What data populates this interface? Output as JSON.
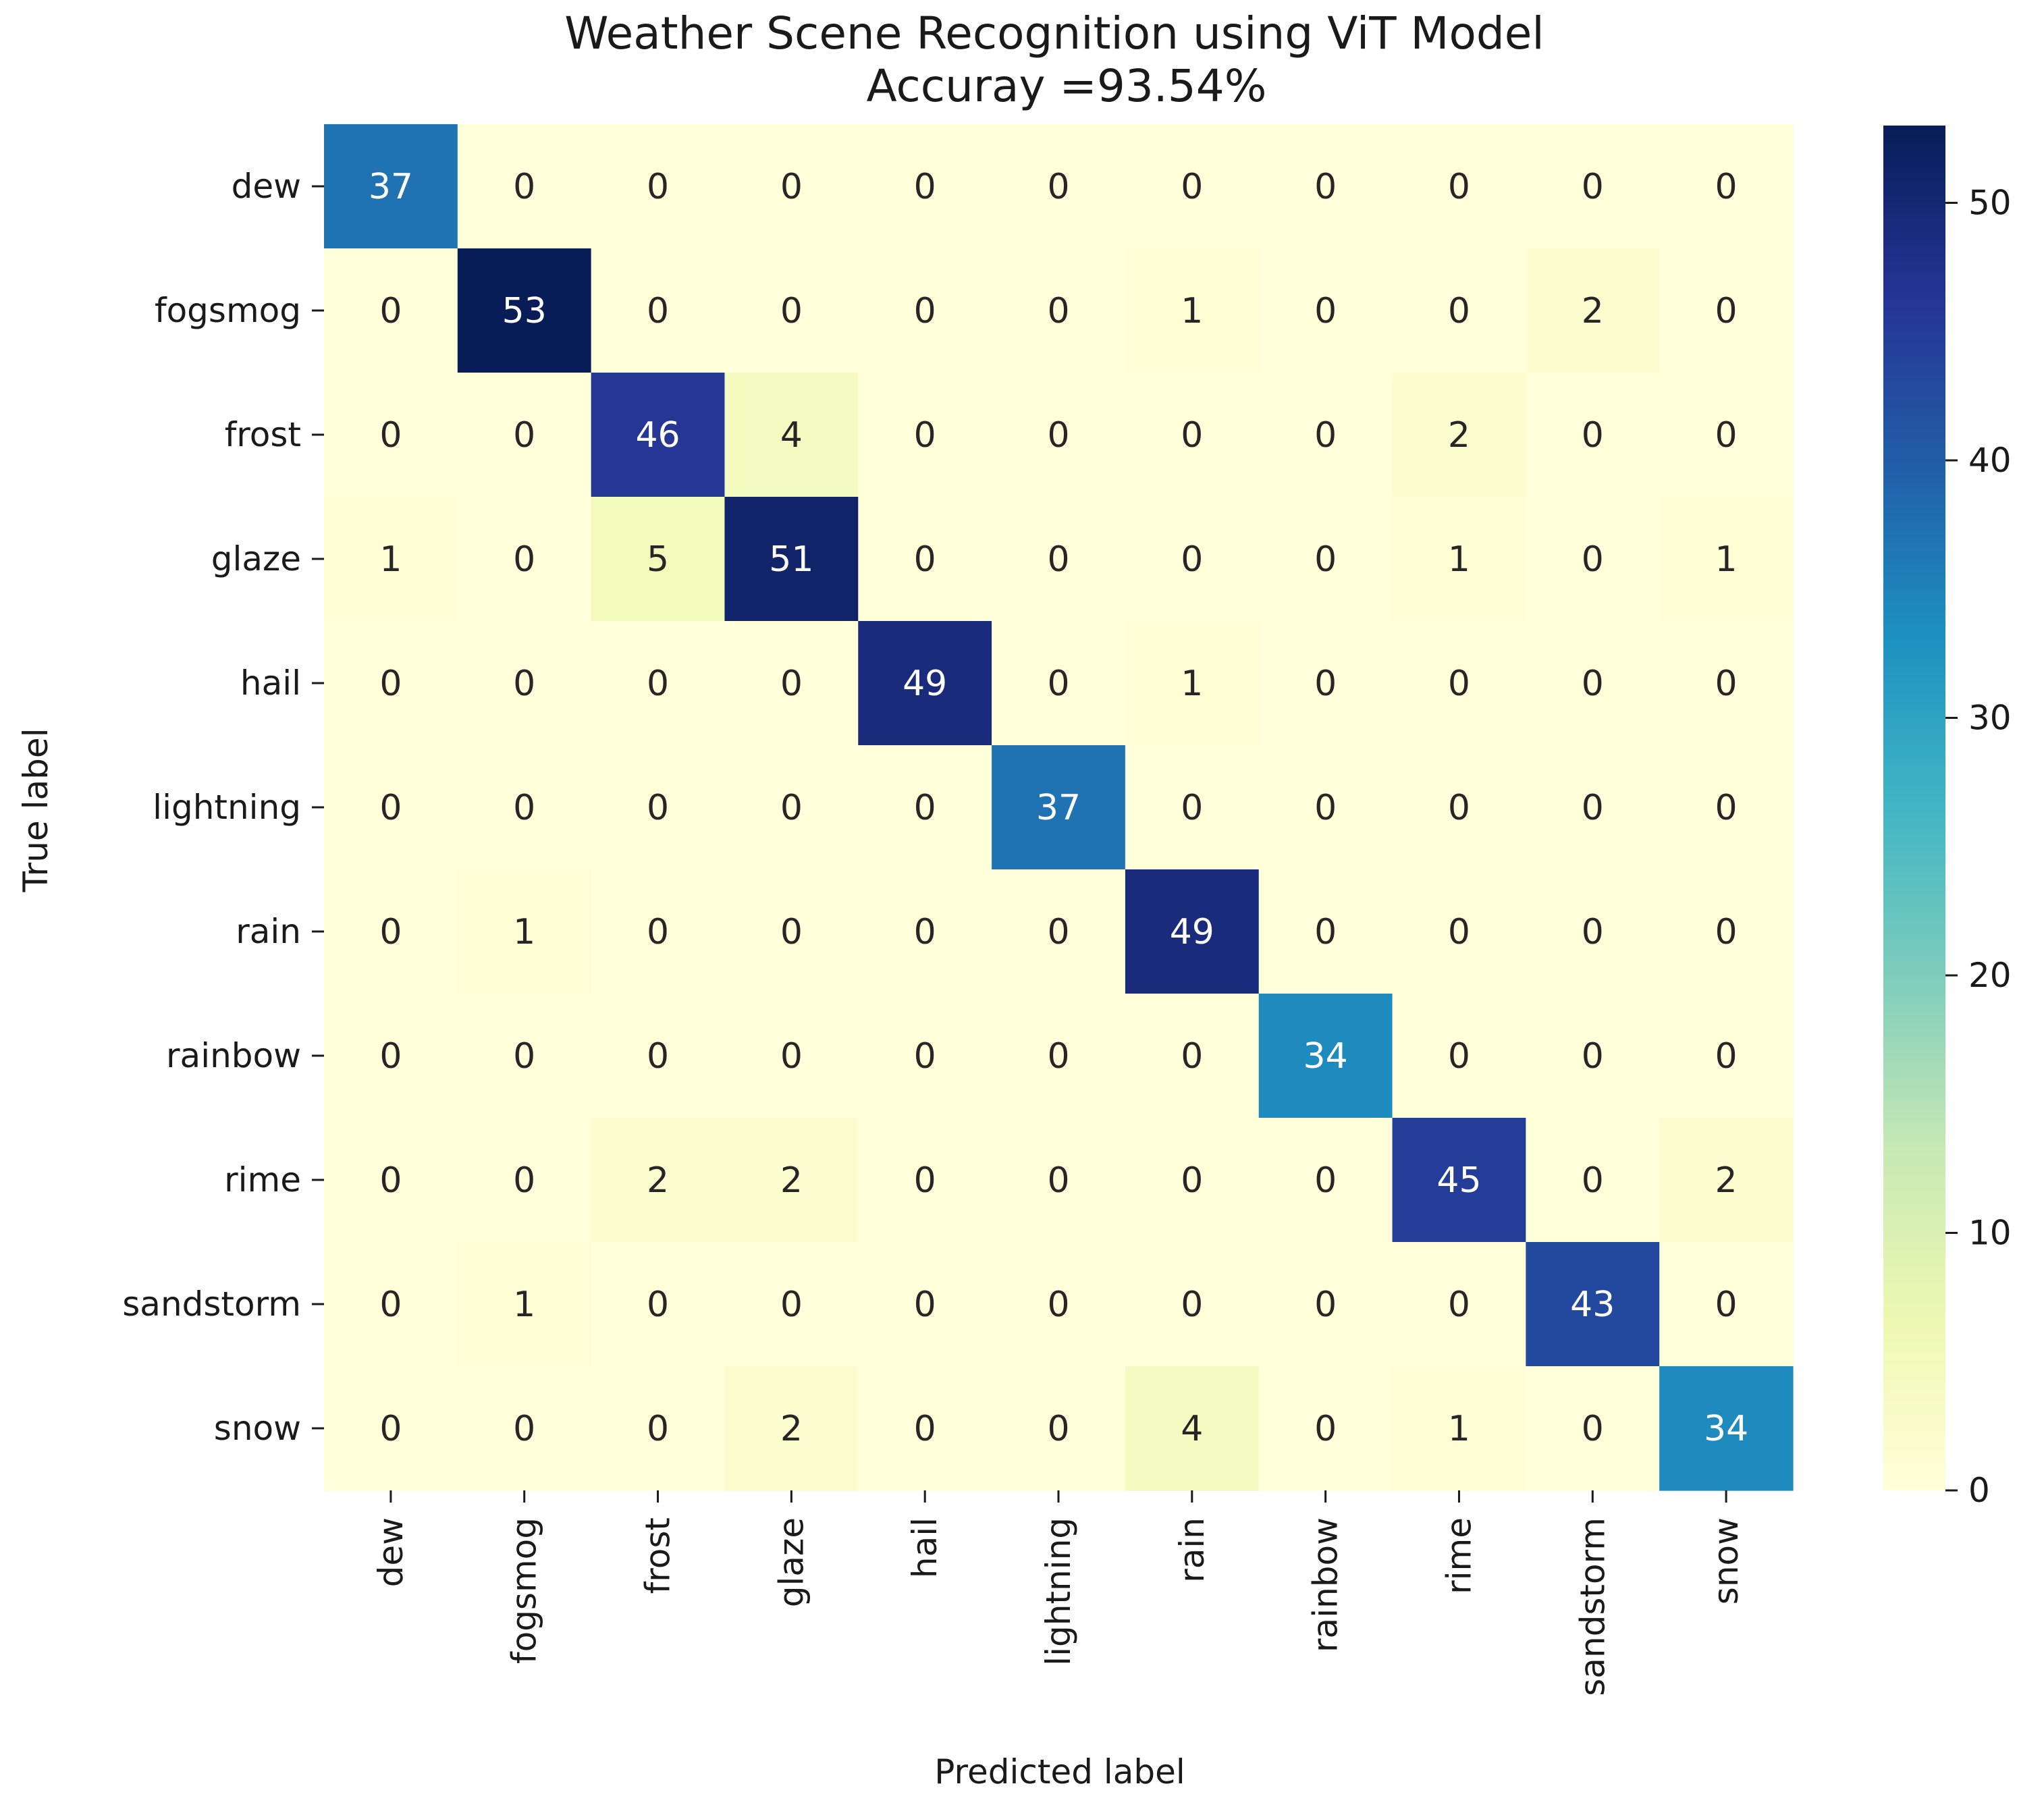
{
  "chart_data": {
    "type": "heatmap",
    "title": "Weather Scene Recognition using ViT Model",
    "subtitle": "Accuray =93.54%",
    "xlabel": "Predicted label",
    "ylabel": "True label",
    "x_categories": [
      "dew",
      "fogsmog",
      "frost",
      "glaze",
      "hail",
      "lightning",
      "rain",
      "rainbow",
      "rime",
      "sandstorm",
      "snow"
    ],
    "y_categories": [
      "dew",
      "fogsmog",
      "frost",
      "glaze",
      "hail",
      "lightning",
      "rain",
      "rainbow",
      "rime",
      "sandstorm",
      "snow"
    ],
    "values": [
      [
        37,
        0,
        0,
        0,
        0,
        0,
        0,
        0,
        0,
        0,
        0
      ],
      [
        0,
        53,
        0,
        0,
        0,
        0,
        1,
        0,
        0,
        2,
        0
      ],
      [
        0,
        0,
        46,
        4,
        0,
        0,
        0,
        0,
        2,
        0,
        0
      ],
      [
        1,
        0,
        5,
        51,
        0,
        0,
        0,
        0,
        1,
        0,
        1
      ],
      [
        0,
        0,
        0,
        0,
        49,
        0,
        1,
        0,
        0,
        0,
        0
      ],
      [
        0,
        0,
        0,
        0,
        0,
        37,
        0,
        0,
        0,
        0,
        0
      ],
      [
        0,
        1,
        0,
        0,
        0,
        0,
        49,
        0,
        0,
        0,
        0
      ],
      [
        0,
        0,
        0,
        0,
        0,
        0,
        0,
        34,
        0,
        0,
        0
      ],
      [
        0,
        0,
        2,
        2,
        0,
        0,
        0,
        0,
        45,
        0,
        2
      ],
      [
        0,
        1,
        0,
        0,
        0,
        0,
        0,
        0,
        0,
        43,
        0
      ],
      [
        0,
        0,
        0,
        2,
        0,
        0,
        4,
        0,
        1,
        0,
        34
      ]
    ],
    "colormap": "YlGnBu",
    "colorbar": {
      "min": 0,
      "max": 53,
      "ticks": [
        0,
        10,
        20,
        30,
        40,
        50
      ]
    }
  }
}
